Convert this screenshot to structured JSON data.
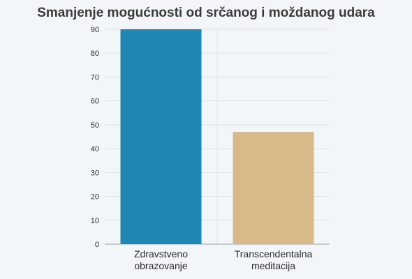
{
  "chart_data": {
    "type": "bar",
    "title": "Smanjenje mogućnosti od srčanog i moždanog udara",
    "xlabel": "",
    "ylabel": "",
    "categories": [
      [
        "Zdravstveno",
        "obrazovanje"
      ],
      [
        "Transcendentalna",
        "meditacija"
      ]
    ],
    "values": [
      90,
      47
    ],
    "bar_colors": [
      "#1f87b4",
      "#d8b98a"
    ],
    "ylim": [
      0,
      90
    ],
    "yticks": [
      0,
      10,
      20,
      30,
      40,
      50,
      60,
      70,
      80,
      90
    ],
    "grid": true,
    "legend": "none"
  }
}
